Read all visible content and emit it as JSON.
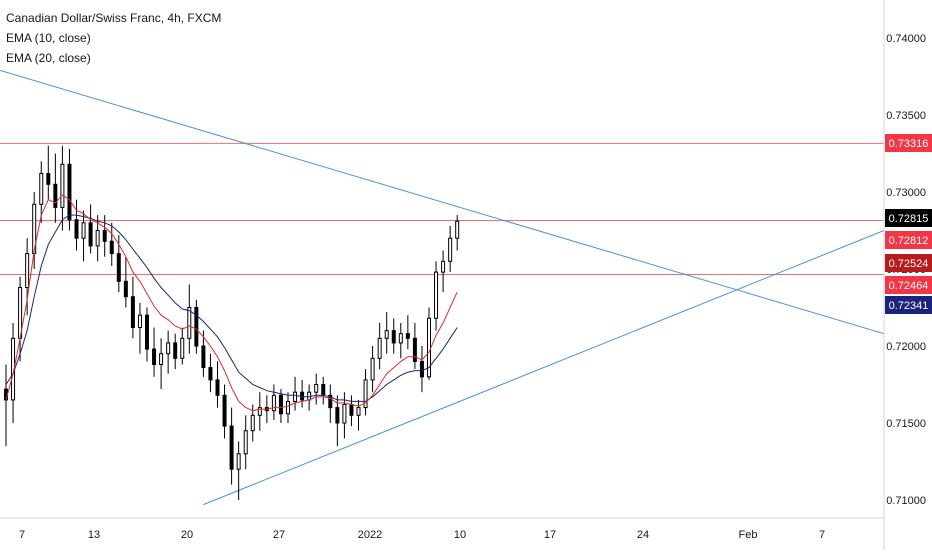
{
  "legend": {
    "symbol": "Canadian Dollar/Swiss Franc, 4h, FXCM",
    "ema10": "EMA (10, close)",
    "ema20": "EMA (20, close)"
  },
  "colors": {
    "candle": "#000000",
    "ema10": "#d32f2f",
    "ema20": "#1a237e",
    "trendline": "#4a8fe0",
    "level": "#e57373",
    "axis_text": "#131722"
  },
  "chart_data": {
    "type": "candlestick",
    "symbol": "CADCHF",
    "timeframe": "4h",
    "x_ticks": [
      "7",
      "13",
      "20",
      "27",
      "2022",
      "10",
      "17",
      "24",
      "Feb",
      "7"
    ],
    "y_ticks": [
      0.74,
      0.735,
      0.73,
      0.725,
      0.72,
      0.715,
      0.71
    ],
    "y_tick_labels": [
      "0.74000",
      "0.73500",
      "0.73000",
      "0.72500",
      "0.72000",
      "0.71500",
      "0.71000"
    ],
    "ylim": [
      0.7085,
      0.7438
    ],
    "horizontal_levels": [
      0.73316,
      0.72815,
      0.72464
    ],
    "price_labels": [
      {
        "text": "0.73316",
        "value": 0.73316,
        "color": "#f23645"
      },
      {
        "text": "0.72815",
        "value": 0.72815,
        "color": "#000000"
      },
      {
        "text": "0.72812",
        "value": 0.72812,
        "color": "#f23645"
      },
      {
        "text": "0.72524",
        "value": 0.72524,
        "color": "#b71c1c"
      },
      {
        "text": "0.72464",
        "value": 0.72464,
        "color": "#f23645"
      },
      {
        "text": "0.72341",
        "value": 0.72341,
        "color": "#1a237e"
      }
    ],
    "candles": [
      [
        0,
        0.7172,
        0.7188,
        0.7135,
        0.7165
      ],
      [
        1,
        0.7165,
        0.7215,
        0.715,
        0.7205
      ],
      [
        2,
        0.7205,
        0.7245,
        0.719,
        0.7238
      ],
      [
        3,
        0.7238,
        0.727,
        0.722,
        0.726
      ],
      [
        4,
        0.726,
        0.73,
        0.725,
        0.7292
      ],
      [
        5,
        0.7292,
        0.732,
        0.728,
        0.7312
      ],
      [
        6,
        0.7312,
        0.733,
        0.7295,
        0.7305
      ],
      [
        7,
        0.7305,
        0.7325,
        0.728,
        0.729
      ],
      [
        8,
        0.729,
        0.733,
        0.7275,
        0.7318
      ],
      [
        9,
        0.7318,
        0.7328,
        0.7275,
        0.7282
      ],
      [
        10,
        0.7282,
        0.7295,
        0.7262,
        0.727
      ],
      [
        11,
        0.727,
        0.7288,
        0.7255,
        0.728
      ],
      [
        12,
        0.728,
        0.7292,
        0.726,
        0.7265
      ],
      [
        13,
        0.7265,
        0.7285,
        0.7255,
        0.7275
      ],
      [
        14,
        0.7275,
        0.7285,
        0.7258,
        0.7268
      ],
      [
        15,
        0.7268,
        0.728,
        0.7252,
        0.726
      ],
      [
        16,
        0.726,
        0.7272,
        0.7235,
        0.7242
      ],
      [
        17,
        0.7242,
        0.7258,
        0.7225,
        0.7232
      ],
      [
        18,
        0.7232,
        0.7245,
        0.7205,
        0.7212
      ],
      [
        19,
        0.7212,
        0.7228,
        0.7195,
        0.722
      ],
      [
        20,
        0.722,
        0.7225,
        0.719,
        0.7198
      ],
      [
        21,
        0.7198,
        0.7212,
        0.718,
        0.7188
      ],
      [
        22,
        0.7188,
        0.7205,
        0.7172,
        0.7195
      ],
      [
        23,
        0.7195,
        0.721,
        0.7182,
        0.7202
      ],
      [
        24,
        0.7202,
        0.7208,
        0.7185,
        0.7192
      ],
      [
        25,
        0.7192,
        0.7212,
        0.7188,
        0.7205
      ],
      [
        26,
        0.7205,
        0.724,
        0.7195,
        0.7225
      ],
      [
        27,
        0.7225,
        0.723,
        0.7195,
        0.72
      ],
      [
        28,
        0.72,
        0.721,
        0.718,
        0.7186
      ],
      [
        29,
        0.7186,
        0.7195,
        0.717,
        0.7178
      ],
      [
        30,
        0.7178,
        0.719,
        0.716,
        0.7168
      ],
      [
        31,
        0.7168,
        0.7175,
        0.714,
        0.7148
      ],
      [
        32,
        0.7148,
        0.716,
        0.711,
        0.712
      ],
      [
        33,
        0.712,
        0.7138,
        0.71,
        0.713
      ],
      [
        34,
        0.713,
        0.7155,
        0.712,
        0.7145
      ],
      [
        35,
        0.7145,
        0.7162,
        0.7138,
        0.7155
      ],
      [
        36,
        0.7155,
        0.717,
        0.7145,
        0.716
      ],
      [
        37,
        0.716,
        0.7168,
        0.715,
        0.7158
      ],
      [
        38,
        0.7158,
        0.7175,
        0.7152,
        0.7168
      ],
      [
        39,
        0.7168,
        0.7172,
        0.715,
        0.7156
      ],
      [
        40,
        0.7156,
        0.717,
        0.715,
        0.7164
      ],
      [
        41,
        0.7164,
        0.718,
        0.7158,
        0.717
      ],
      [
        42,
        0.717,
        0.7178,
        0.716,
        0.7165
      ],
      [
        43,
        0.7165,
        0.7175,
        0.7158,
        0.717
      ],
      [
        44,
        0.717,
        0.7182,
        0.7162,
        0.7175
      ],
      [
        45,
        0.7175,
        0.718,
        0.7162,
        0.7168
      ],
      [
        46,
        0.7168,
        0.7175,
        0.715,
        0.716
      ],
      [
        47,
        0.716,
        0.7168,
        0.7135,
        0.715
      ],
      [
        48,
        0.715,
        0.717,
        0.714,
        0.7162
      ],
      [
        49,
        0.7162,
        0.7168,
        0.7148,
        0.7155
      ],
      [
        50,
        0.7155,
        0.7165,
        0.7145,
        0.716
      ],
      [
        51,
        0.716,
        0.7185,
        0.7155,
        0.7178
      ],
      [
        52,
        0.7178,
        0.72,
        0.717,
        0.7192
      ],
      [
        53,
        0.7192,
        0.7215,
        0.7185,
        0.7205
      ],
      [
        54,
        0.7205,
        0.7222,
        0.7195,
        0.721
      ],
      [
        55,
        0.721,
        0.7218,
        0.7195,
        0.7202
      ],
      [
        56,
        0.7202,
        0.7215,
        0.7192,
        0.7208
      ],
      [
        57,
        0.7208,
        0.722,
        0.7198,
        0.7205
      ],
      [
        58,
        0.7205,
        0.7215,
        0.7185,
        0.719
      ],
      [
        59,
        0.719,
        0.72,
        0.717,
        0.718
      ],
      [
        60,
        0.718,
        0.7225,
        0.7178,
        0.7218
      ],
      [
        61,
        0.7218,
        0.7255,
        0.721,
        0.7248
      ],
      [
        62,
        0.7248,
        0.7262,
        0.7235,
        0.7255
      ],
      [
        63,
        0.7255,
        0.7278,
        0.7248,
        0.727
      ],
      [
        64,
        0.727,
        0.7285,
        0.7262,
        0.7281
      ]
    ],
    "ema10": [
      0.7165,
      0.7182,
      0.7205,
      0.723,
      0.7262,
      0.7285,
      0.7295,
      0.7293,
      0.7298,
      0.7295,
      0.7288,
      0.7286,
      0.7282,
      0.728,
      0.7277,
      0.7273,
      0.7266,
      0.7258,
      0.7248,
      0.7242,
      0.7234,
      0.7226,
      0.722,
      0.7217,
      0.7213,
      0.7211,
      0.7213,
      0.7211,
      0.7206,
      0.72,
      0.7193,
      0.7184,
      0.7173,
      0.7164,
      0.716,
      0.7158,
      0.7159,
      0.7159,
      0.716,
      0.716,
      0.7161,
      0.7163,
      0.7164,
      0.7165,
      0.7167,
      0.7167,
      0.7166,
      0.7163,
      0.7163,
      0.7162,
      0.7161,
      0.7163,
      0.7168,
      0.7175,
      0.7182,
      0.7186,
      0.719,
      0.7193,
      0.7193,
      0.7191,
      0.7196,
      0.7207,
      0.7215,
      0.7225,
      0.7235
    ],
    "ema20": [
      0.7175,
      0.7182,
      0.7195,
      0.721,
      0.7232,
      0.7252,
      0.7266,
      0.7274,
      0.7282,
      0.7285,
      0.7285,
      0.7284,
      0.7283,
      0.7281,
      0.728,
      0.7278,
      0.7274,
      0.7269,
      0.7263,
      0.7257,
      0.7251,
      0.7244,
      0.7238,
      0.7233,
      0.7228,
      0.7224,
      0.7223,
      0.722,
      0.7216,
      0.7211,
      0.7206,
      0.7199,
      0.7191,
      0.7183,
      0.7179,
      0.7175,
      0.7173,
      0.7171,
      0.717,
      0.7169,
      0.7168,
      0.7168,
      0.7167,
      0.7167,
      0.7168,
      0.7168,
      0.7167,
      0.7165,
      0.7165,
      0.7164,
      0.7164,
      0.7164,
      0.7167,
      0.7171,
      0.7175,
      0.7178,
      0.7181,
      0.7183,
      0.7184,
      0.7184,
      0.7186,
      0.7192,
      0.7198,
      0.7205,
      0.7212
    ]
  }
}
